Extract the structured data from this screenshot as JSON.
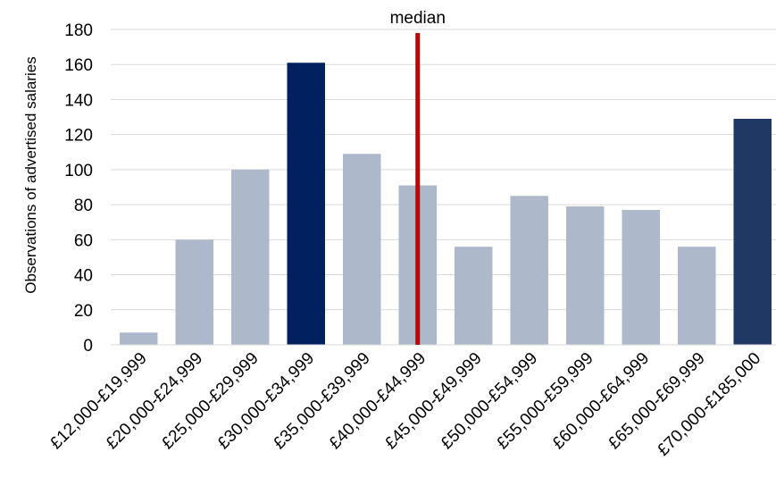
{
  "chart_data": {
    "type": "bar",
    "title": "",
    "xlabel": "",
    "ylabel": "Observations of advertised salaries",
    "ylim": [
      0,
      180
    ],
    "yticks": [
      0,
      20,
      40,
      60,
      80,
      100,
      120,
      140,
      160,
      180
    ],
    "grid": true,
    "categories": [
      "£12,000-£19,999",
      "£20,000-£24,999",
      "£25,000-£29,999",
      "£30,000-£34,999",
      "£35,000-£39,999",
      "£40,000-£44,999",
      "£45,000-£49,999",
      "£50,000-£54,999",
      "£55,000-£59,999",
      "£60,000-£64,999",
      "£65,000-£69,999",
      "£70,000-£185,000"
    ],
    "values": [
      7,
      60,
      100,
      161,
      109,
      91,
      56,
      85,
      79,
      77,
      56,
      129
    ],
    "bar_colors": [
      "#adb9ca",
      "#adb9ca",
      "#adb9ca",
      "#002060",
      "#adb9ca",
      "#adb9ca",
      "#adb9ca",
      "#adb9ca",
      "#adb9ca",
      "#adb9ca",
      "#adb9ca",
      "#1f3864"
    ],
    "gridline_color": "#d9d9d9",
    "axis_color": "#d9d9d9",
    "median_line": {
      "label": "median",
      "category_index": 5,
      "color": "#c00000"
    }
  }
}
